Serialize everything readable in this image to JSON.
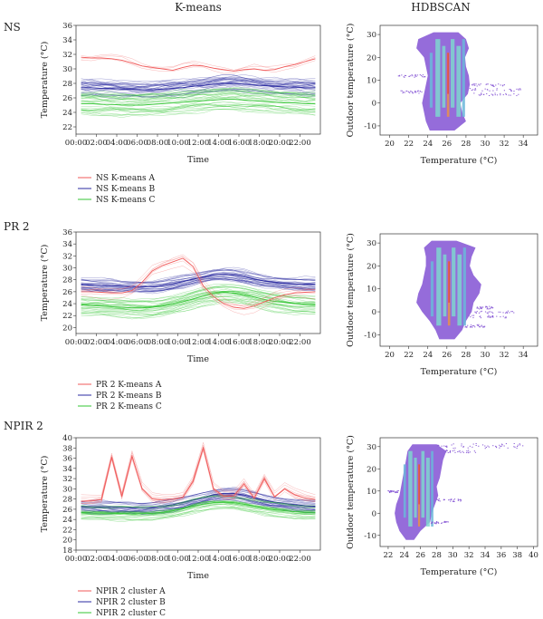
{
  "headers": {
    "kmeans": "K-means",
    "hdbscan": "HDBSCAN"
  },
  "colors": {
    "A": "#f05a5a",
    "B": "#2a2aa0",
    "C": "#33c533",
    "hdb_base": "#8a5cd6",
    "hdb_cyan": "#7fd6cf",
    "hdb_orange": "#e8924a"
  },
  "chart_data": [
    {
      "type": "line",
      "row": "NS",
      "xlabel": "Time",
      "ylabel": "Temperature (°C)",
      "x_ticks": [
        "00:00",
        "02:00",
        "04:00",
        "06:00",
        "08:00",
        "10:00",
        "12:00",
        "14:00",
        "16:00",
        "18:00",
        "20:00",
        "22:00"
      ],
      "ylim": [
        21,
        36
      ],
      "y_ticks": [
        22,
        24,
        26,
        28,
        30,
        32,
        34,
        36
      ],
      "series": [
        {
          "name": "NS K-means A",
          "values": [
            31.6,
            31.5,
            31.5,
            31.4,
            31.2,
            30.8,
            30.4,
            30.2,
            30.0,
            29.8,
            30.2,
            30.5,
            30.4,
            30.1,
            29.9,
            29.7,
            29.9,
            30.0,
            29.8,
            29.9,
            30.3,
            30.6,
            31.0,
            31.4
          ]
        },
        {
          "name": "NS K-means B",
          "values": [
            27.4,
            27.4,
            27.3,
            27.3,
            27.2,
            27.2,
            27.1,
            27.1,
            27.2,
            27.3,
            27.4,
            27.6,
            27.7,
            27.9,
            28.0,
            28.0,
            27.9,
            27.8,
            27.7,
            27.6,
            27.5,
            27.5,
            27.4,
            27.4
          ]
        },
        {
          "name": "NS K-means C",
          "values": [
            25.2,
            25.2,
            25.1,
            25.1,
            25.0,
            25.0,
            25.0,
            25.1,
            25.2,
            25.3,
            25.4,
            25.5,
            25.6,
            25.7,
            25.8,
            25.8,
            25.7,
            25.6,
            25.5,
            25.4,
            25.3,
            25.3,
            25.2,
            25.2
          ]
        }
      ]
    },
    {
      "type": "line",
      "row": "PR 2",
      "xlabel": "Time",
      "ylabel": "Temperature (°C)",
      "x_ticks": [
        "00:00",
        "02:00",
        "04:00",
        "06:00",
        "08:00",
        "10:00",
        "12:00",
        "14:00",
        "16:00",
        "18:00",
        "20:00",
        "22:00"
      ],
      "ylim": [
        19,
        36
      ],
      "y_ticks": [
        20,
        22,
        24,
        26,
        28,
        30,
        32,
        34,
        36
      ],
      "series": [
        {
          "name": "PR 2 K-means A",
          "values": [
            26.0,
            26.0,
            25.9,
            25.8,
            25.8,
            26.2,
            27.6,
            29.5,
            30.4,
            31.0,
            31.6,
            30.2,
            27.0,
            25.2,
            24.0,
            23.4,
            23.2,
            23.6,
            24.3,
            25.0,
            25.5,
            25.8,
            25.9,
            26.0
          ]
        },
        {
          "name": "PR 2 K-means B",
          "values": [
            27.2,
            27.1,
            27.0,
            27.0,
            26.9,
            26.9,
            26.8,
            26.8,
            27.0,
            27.3,
            27.7,
            28.1,
            28.5,
            28.8,
            28.9,
            28.8,
            28.5,
            28.1,
            27.8,
            27.6,
            27.4,
            27.3,
            27.2,
            27.2
          ]
        },
        {
          "name": "PR 2 K-means C",
          "values": [
            23.8,
            23.7,
            23.6,
            23.5,
            23.4,
            23.3,
            23.3,
            23.4,
            23.6,
            23.9,
            24.3,
            24.8,
            25.3,
            25.7,
            25.9,
            25.8,
            25.5,
            25.1,
            24.7,
            24.4,
            24.2,
            24.0,
            23.9,
            23.8
          ]
        }
      ]
    },
    {
      "type": "line",
      "row": "NPIR 2",
      "xlabel": "Time",
      "ylabel": "Temperature (°C)",
      "x_ticks": [
        "00:00",
        "02:00",
        "04:00",
        "06:00",
        "08:00",
        "10:00",
        "12:00",
        "14:00",
        "16:00",
        "18:00",
        "20:00",
        "22:00"
      ],
      "ylim": [
        18,
        40
      ],
      "y_ticks": [
        18,
        20,
        22,
        24,
        26,
        28,
        30,
        32,
        34,
        36,
        38,
        40
      ],
      "series": [
        {
          "name": "NPIR 2 cluster A",
          "values": [
            27.6,
            27.6,
            27.9,
            36.2,
            28.5,
            36.4,
            30.0,
            28.0,
            27.8,
            28.0,
            28.4,
            31.5,
            38.0,
            30.0,
            28.5,
            28.6,
            31.0,
            28.2,
            32.0,
            28.4,
            30.0,
            28.8,
            28.2,
            27.9
          ]
        },
        {
          "name": "NPIR 2 cluster B",
          "values": [
            26.6,
            26.5,
            26.5,
            26.4,
            26.4,
            26.3,
            26.3,
            26.4,
            26.6,
            26.9,
            27.3,
            27.8,
            28.3,
            28.8,
            29.1,
            29.1,
            28.8,
            28.3,
            27.8,
            27.4,
            27.1,
            26.9,
            26.7,
            26.6
          ]
        },
        {
          "name": "NPIR 2 cluster C",
          "values": [
            25.4,
            25.3,
            25.3,
            25.2,
            25.2,
            25.1,
            25.1,
            25.2,
            25.4,
            25.7,
            26.1,
            26.6,
            27.0,
            27.3,
            27.4,
            27.3,
            27.0,
            26.6,
            26.2,
            25.9,
            25.7,
            25.5,
            25.4,
            25.4
          ]
        }
      ]
    },
    {
      "type": "heatmap",
      "row": "NS",
      "xlabel": "Temperature (°C)",
      "ylabel": "Outdoor temperature (°C)",
      "xlim": [
        19,
        35.5
      ],
      "x_ticks": [
        20,
        22,
        24,
        26,
        28,
        30,
        32,
        34
      ],
      "ylim": [
        -14,
        34
      ],
      "y_ticks": [
        -10,
        0,
        10,
        20,
        30
      ]
    },
    {
      "type": "heatmap",
      "row": "PR 2",
      "xlabel": "Temperature (°C)",
      "ylabel": "Outdoor temperature (°C)",
      "xlim": [
        19,
        35.5
      ],
      "x_ticks": [
        20,
        22,
        24,
        26,
        28,
        30,
        32,
        34
      ],
      "ylim": [
        -15,
        34
      ],
      "y_ticks": [
        -10,
        0,
        10,
        20,
        30
      ]
    },
    {
      "type": "heatmap",
      "row": "NPIR 2",
      "xlabel": "Temperature (°C)",
      "ylabel": "Outdoor temperature (°C)",
      "xlim": [
        21,
        40.5
      ],
      "x_ticks": [
        22,
        24,
        26,
        28,
        30,
        32,
        34,
        36,
        38,
        40
      ],
      "ylim": [
        -15,
        34
      ],
      "y_ticks": [
        -10,
        0,
        10,
        20,
        30
      ]
    }
  ]
}
